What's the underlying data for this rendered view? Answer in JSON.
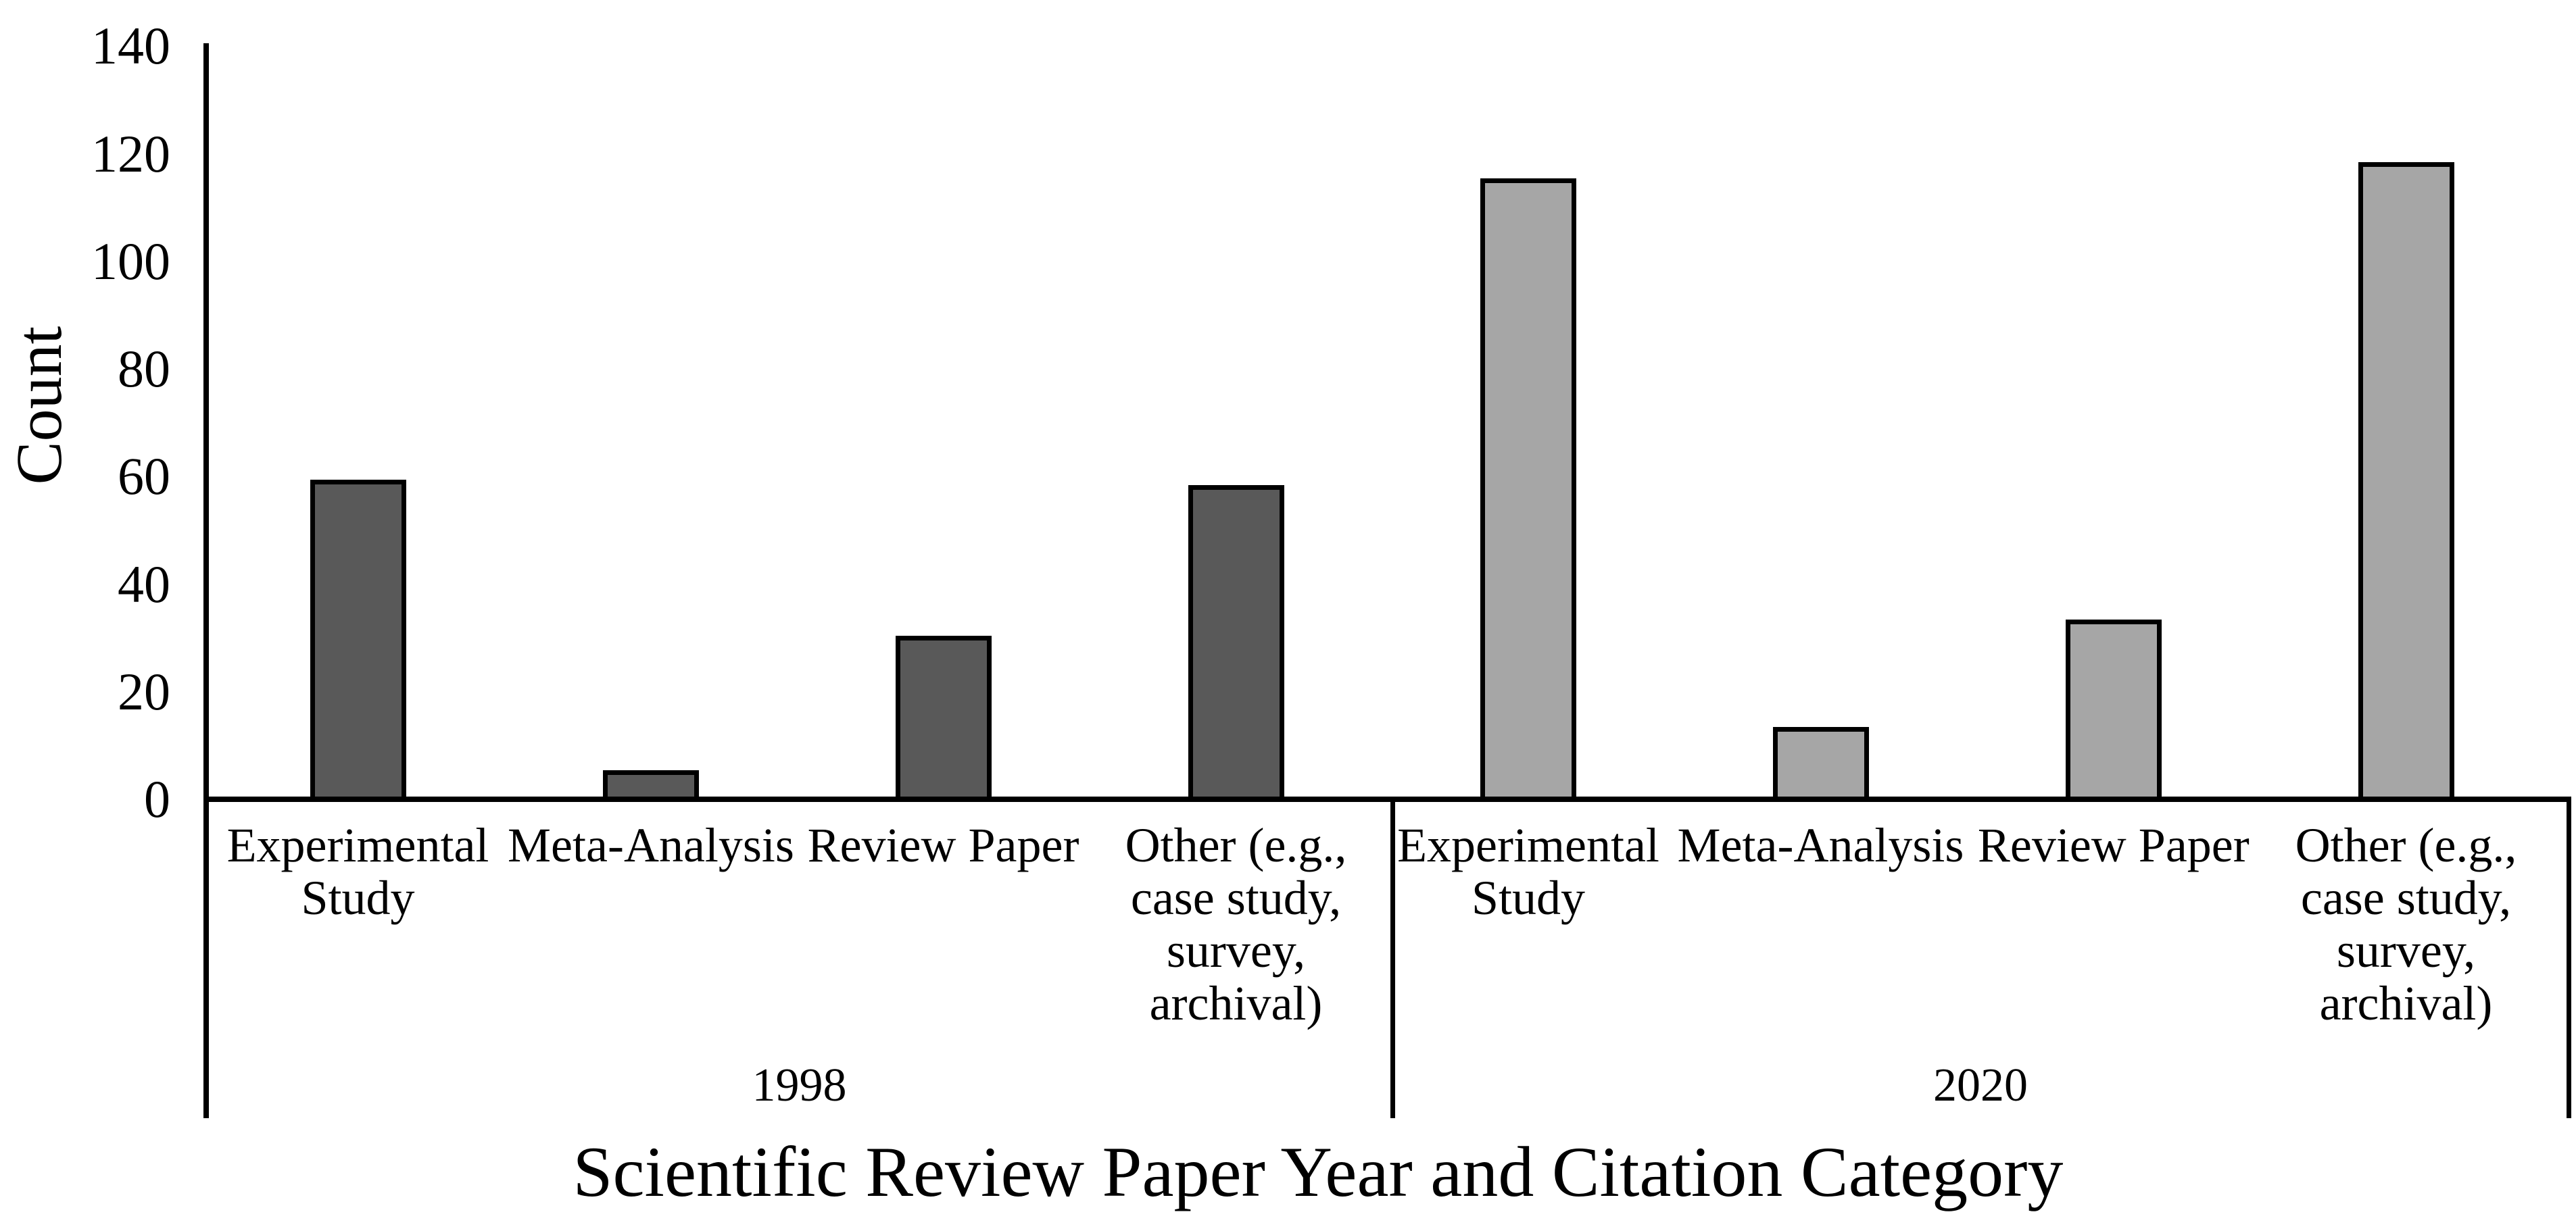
{
  "chart_data": {
    "type": "bar",
    "title": "",
    "xlabel": "Scientific Review Paper Year and Citation Category",
    "ylabel": "Count",
    "ylim": [
      0,
      140
    ],
    "yticks": [
      0,
      20,
      40,
      60,
      80,
      100,
      120,
      140
    ],
    "grid": false,
    "legend": false,
    "categories": [
      "Experimental Study",
      "Meta-Analysis",
      "Review Paper",
      "Other (e.g., case study, survey, archival)"
    ],
    "category_label_lines": [
      [
        "Experimental",
        "Study"
      ],
      [
        "Meta-Analysis"
      ],
      [
        "Review Paper"
      ],
      [
        "Other (e.g.,",
        "case study,",
        "survey,",
        "archival)"
      ]
    ],
    "series": [
      {
        "name": "1998",
        "color": "#595959",
        "values": [
          59,
          5,
          30,
          58
        ]
      },
      {
        "name": "2020",
        "color": "#a6a6a6",
        "values": [
          115,
          13,
          33,
          118
        ]
      }
    ],
    "bar_border_color": "#000000",
    "axis_color": "#000000",
    "text_color": "#000000",
    "background_color": "#ffffff"
  }
}
